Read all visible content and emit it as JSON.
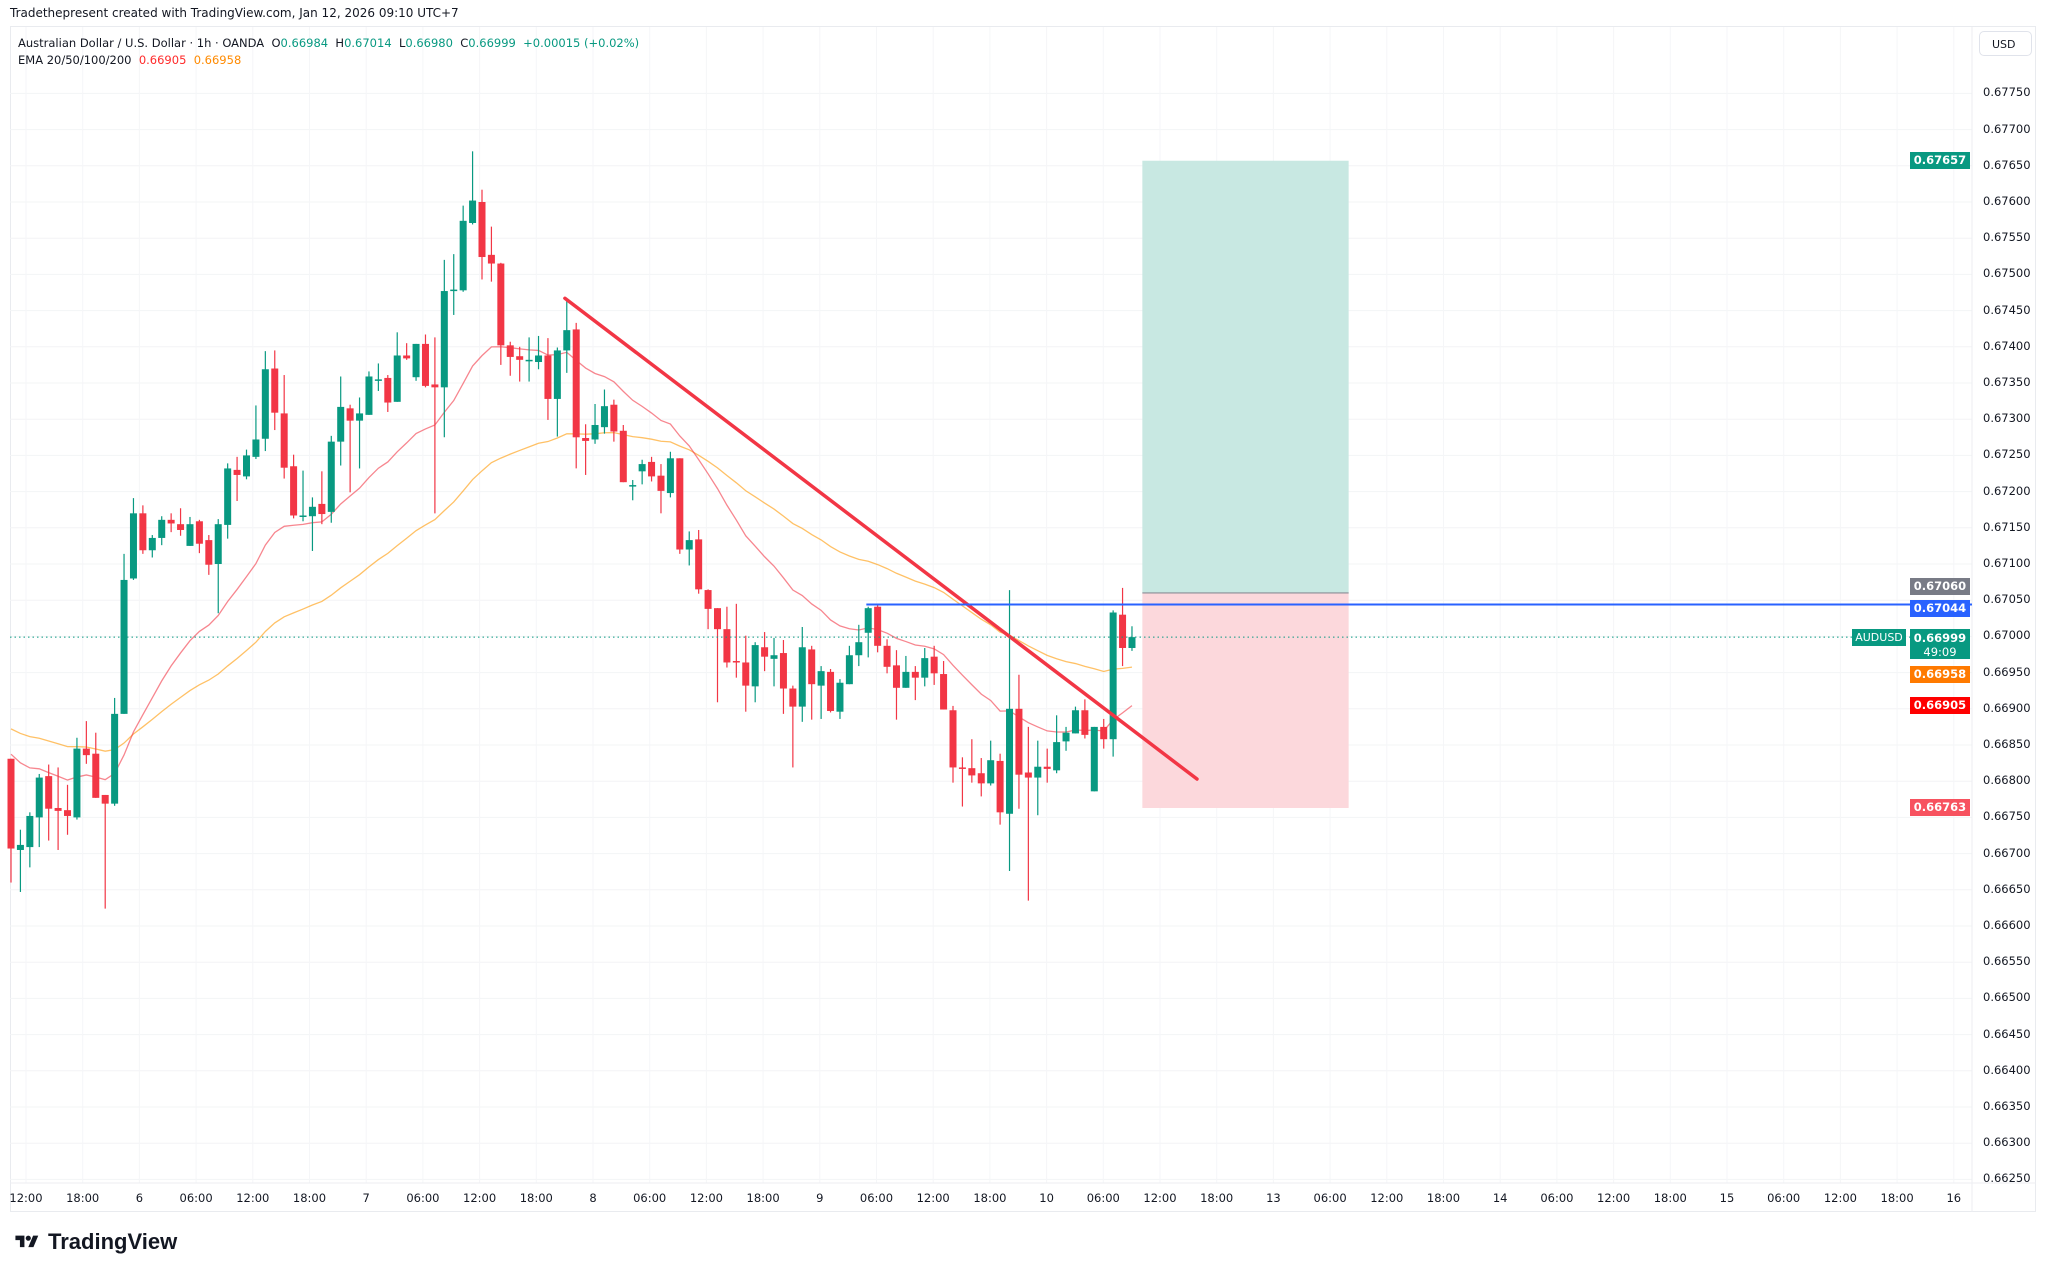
{
  "header": {
    "credit": "Tradethepresent created with TradingView.com, Jan 12, 2026 09:10 UTC+7"
  },
  "legend": {
    "symbol": "Australian Dollar / U.S. Dollar · 1h · OANDA",
    "o_label": "O",
    "o": "0.66984",
    "h_label": "H",
    "h": "0.67014",
    "l_label": "L",
    "l": "0.66980",
    "c_label": "C",
    "c": "0.66999",
    "change": "+0.00015 (+0.02%)",
    "ema_label": "EMA 20/50/100/200",
    "ema20": "0.66905",
    "ema50": "0.66958"
  },
  "currency_button": "USD",
  "badges": {
    "target": "0.67657",
    "entry": "0.67060",
    "level": "0.67044",
    "symbol": "AUDUSD",
    "price": "0.66999",
    "countdown": "49:09",
    "ema50": "0.66958",
    "ema20": "0.66905",
    "stop": "0.66763"
  },
  "logo": "TradingView",
  "colors": {
    "up": "#089981",
    "down": "#f23645",
    "ema20": "#f23645",
    "ema50": "#ff9800",
    "level": "#2962ff",
    "trend": "#f23645"
  },
  "chart_data": {
    "type": "candlestick",
    "title": "AUDUSD 1h",
    "ylim": [
      0.6625,
      0.6778
    ],
    "y_ticks": [
      "0.67750",
      "0.67700",
      "0.67650",
      "0.67600",
      "0.67550",
      "0.67500",
      "0.67450",
      "0.67400",
      "0.67350",
      "0.67300",
      "0.67250",
      "0.67200",
      "0.67150",
      "0.67100",
      "0.67050",
      "0.67000",
      "0.66950",
      "0.66900",
      "0.66850",
      "0.66800",
      "0.66750",
      "0.66700",
      "0.66650",
      "0.66600",
      "0.66550",
      "0.66500",
      "0.66450",
      "0.66400",
      "0.66350",
      "0.66300",
      "0.66250"
    ],
    "x_ticks": [
      "12:00",
      "18:00",
      "6",
      "06:00",
      "12:00",
      "18:00",
      "7",
      "06:00",
      "12:00",
      "18:00",
      "8",
      "06:00",
      "12:00",
      "18:00",
      "9",
      "06:00",
      "12:00",
      "18:00",
      "10",
      "06:00",
      "12:00",
      "18:00",
      "13",
      "06:00",
      "12:00",
      "18:00",
      "14",
      "06:00",
      "12:00",
      "18:00",
      "15",
      "06:00",
      "12:00",
      "18:00",
      "16"
    ],
    "ema_seed": {
      "ema20": 0.66851,
      "ema50": 0.66879
    },
    "ohlc": [
      [
        0.66831,
        0.66831,
        0.6666,
        0.66707
      ],
      [
        0.66705,
        0.66733,
        0.66647,
        0.66712
      ],
      [
        0.66709,
        0.66757,
        0.66681,
        0.66752
      ],
      [
        0.6675,
        0.6681,
        0.66709,
        0.66805
      ],
      [
        0.66807,
        0.66823,
        0.66718,
        0.66762
      ],
      [
        0.66763,
        0.66819,
        0.66705,
        0.66759
      ],
      [
        0.6676,
        0.66795,
        0.66726,
        0.66752
      ],
      [
        0.6675,
        0.6686,
        0.66747,
        0.66845
      ],
      [
        0.66845,
        0.66883,
        0.66824,
        0.66836
      ],
      [
        0.66838,
        0.66867,
        0.66777,
        0.66777
      ],
      [
        0.66781,
        0.66781,
        0.66624,
        0.66769
      ],
      [
        0.66769,
        0.66915,
        0.66766,
        0.66893
      ],
      [
        0.66893,
        0.67114,
        0.66893,
        0.67078
      ],
      [
        0.6708,
        0.67191,
        0.67078,
        0.6717
      ],
      [
        0.6717,
        0.67181,
        0.67114,
        0.67119
      ],
      [
        0.67119,
        0.6714,
        0.67109,
        0.67136
      ],
      [
        0.67136,
        0.67166,
        0.67126,
        0.67161
      ],
      [
        0.67161,
        0.6717,
        0.67144,
        0.67156
      ],
      [
        0.67155,
        0.67177,
        0.67139,
        0.67147
      ],
      [
        0.67125,
        0.67165,
        0.67125,
        0.67155
      ],
      [
        0.67159,
        0.67161,
        0.67115,
        0.67128
      ],
      [
        0.67133,
        0.6714,
        0.67085,
        0.67099
      ],
      [
        0.671,
        0.67162,
        0.67032,
        0.67155
      ],
      [
        0.67154,
        0.67239,
        0.67135,
        0.67232
      ],
      [
        0.6723,
        0.67248,
        0.67187,
        0.67223
      ],
      [
        0.67221,
        0.67258,
        0.67217,
        0.6725
      ],
      [
        0.67248,
        0.67319,
        0.67245,
        0.67272
      ],
      [
        0.67273,
        0.67394,
        0.67256,
        0.67369
      ],
      [
        0.6737,
        0.67395,
        0.67285,
        0.67309
      ],
      [
        0.67308,
        0.67361,
        0.67218,
        0.67233
      ],
      [
        0.67235,
        0.67251,
        0.67163,
        0.67167
      ],
      [
        0.67166,
        0.67229,
        0.67159,
        0.67167
      ],
      [
        0.67166,
        0.67192,
        0.67118,
        0.67179
      ],
      [
        0.67183,
        0.67228,
        0.67155,
        0.67169
      ],
      [
        0.67172,
        0.67277,
        0.67157,
        0.67269
      ],
      [
        0.67269,
        0.67359,
        0.67236,
        0.67317
      ],
      [
        0.67315,
        0.6732,
        0.67199,
        0.67298
      ],
      [
        0.67298,
        0.6733,
        0.67232,
        0.67308
      ],
      [
        0.67306,
        0.67366,
        0.67306,
        0.67359
      ],
      [
        0.67353,
        0.67377,
        0.67339,
        0.67355
      ],
      [
        0.67357,
        0.67361,
        0.6731,
        0.67323
      ],
      [
        0.67324,
        0.6742,
        0.67324,
        0.67388
      ],
      [
        0.67388,
        0.67405,
        0.67382,
        0.67384
      ],
      [
        0.67358,
        0.67404,
        0.67353,
        0.67404
      ],
      [
        0.67404,
        0.67417,
        0.67344,
        0.67346
      ],
      [
        0.67348,
        0.67413,
        0.6717,
        0.67344
      ],
      [
        0.67344,
        0.6752,
        0.67275,
        0.67477
      ],
      [
        0.67477,
        0.67528,
        0.67444,
        0.67479
      ],
      [
        0.67478,
        0.67595,
        0.67476,
        0.67574
      ],
      [
        0.67571,
        0.6767,
        0.67569,
        0.67602
      ],
      [
        0.676,
        0.67617,
        0.67493,
        0.67524
      ],
      [
        0.67527,
        0.67566,
        0.6749,
        0.67515
      ],
      [
        0.67515,
        0.67516,
        0.67375,
        0.67402
      ],
      [
        0.67402,
        0.67407,
        0.6736,
        0.67386
      ],
      [
        0.67387,
        0.674,
        0.67352,
        0.67382
      ],
      [
        0.67381,
        0.67413,
        0.67352,
        0.67382
      ],
      [
        0.67379,
        0.67415,
        0.67369,
        0.67388
      ],
      [
        0.67388,
        0.67412,
        0.67299,
        0.67328
      ],
      [
        0.67328,
        0.67399,
        0.67276,
        0.67395
      ],
      [
        0.67395,
        0.67467,
        0.67364,
        0.67423
      ],
      [
        0.67424,
        0.67433,
        0.67232,
        0.67275
      ],
      [
        0.67274,
        0.67293,
        0.67223,
        0.6727
      ],
      [
        0.67272,
        0.67321,
        0.67266,
        0.67292
      ],
      [
        0.67289,
        0.67341,
        0.6728,
        0.67318
      ],
      [
        0.6732,
        0.67327,
        0.67269,
        0.67283
      ],
      [
        0.67284,
        0.67292,
        0.67213,
        0.67213
      ],
      [
        0.67208,
        0.67216,
        0.67188,
        0.67209
      ],
      [
        0.67228,
        0.67244,
        0.6721,
        0.67238
      ],
      [
        0.67241,
        0.67248,
        0.67214,
        0.67221
      ],
      [
        0.67222,
        0.67238,
        0.6717,
        0.67201
      ],
      [
        0.67198,
        0.67255,
        0.67192,
        0.67246
      ],
      [
        0.67246,
        0.67246,
        0.67114,
        0.6712
      ],
      [
        0.6712,
        0.67145,
        0.67098,
        0.67133
      ],
      [
        0.67134,
        0.67147,
        0.67059,
        0.67065
      ],
      [
        0.67064,
        0.67065,
        0.6701,
        0.67038
      ],
      [
        0.67039,
        0.67039,
        0.66909,
        0.6701
      ],
      [
        0.6701,
        0.67041,
        0.66957,
        0.66964
      ],
      [
        0.66966,
        0.67045,
        0.66943,
        0.66965
      ],
      [
        0.66964,
        0.67001,
        0.66896,
        0.66932
      ],
      [
        0.66931,
        0.66992,
        0.66909,
        0.66988
      ],
      [
        0.66985,
        0.67006,
        0.66952,
        0.66972
      ],
      [
        0.66969,
        0.66998,
        0.66931,
        0.66974
      ],
      [
        0.66977,
        0.66995,
        0.66893,
        0.66928
      ],
      [
        0.66928,
        0.66932,
        0.66819,
        0.66903
      ],
      [
        0.66903,
        0.67013,
        0.66882,
        0.66985
      ],
      [
        0.66982,
        0.66987,
        0.66885,
        0.66934
      ],
      [
        0.66932,
        0.66959,
        0.66886,
        0.66952
      ],
      [
        0.66951,
        0.66955,
        0.66895,
        0.66897
      ],
      [
        0.66896,
        0.66941,
        0.66886,
        0.66936
      ],
      [
        0.66934,
        0.66987,
        0.66934,
        0.66974
      ],
      [
        0.66974,
        0.67016,
        0.66959,
        0.66992
      ],
      [
        0.67005,
        0.67041,
        0.66971,
        0.67039
      ],
      [
        0.67041,
        0.67045,
        0.66978,
        0.66987
      ],
      [
        0.66987,
        0.66996,
        0.66949,
        0.66958
      ],
      [
        0.6696,
        0.66981,
        0.66885,
        0.66929
      ],
      [
        0.66929,
        0.66973,
        0.66929,
        0.66951
      ],
      [
        0.66951,
        0.66959,
        0.66912,
        0.66943
      ],
      [
        0.66943,
        0.66984,
        0.66931,
        0.6697
      ],
      [
        0.66972,
        0.66987,
        0.66933,
        0.66949
      ],
      [
        0.66948,
        0.66966,
        0.66899,
        0.66899
      ],
      [
        0.66898,
        0.66904,
        0.66798,
        0.66819
      ],
      [
        0.66819,
        0.66833,
        0.66765,
        0.66817
      ],
      [
        0.66818,
        0.66858,
        0.66798,
        0.66808
      ],
      [
        0.66811,
        0.66832,
        0.66779,
        0.66797
      ],
      [
        0.66797,
        0.66856,
        0.66794,
        0.66829
      ],
      [
        0.66828,
        0.66838,
        0.6674,
        0.66757
      ],
      [
        0.66755,
        0.67064,
        0.66676,
        0.669
      ],
      [
        0.669,
        0.66947,
        0.66762,
        0.66809
      ],
      [
        0.66812,
        0.66875,
        0.66635,
        0.66805
      ],
      [
        0.66805,
        0.66856,
        0.66753,
        0.6682
      ],
      [
        0.6682,
        0.66845,
        0.66798,
        0.66817
      ],
      [
        0.66815,
        0.66891,
        0.66811,
        0.66854
      ],
      [
        0.66855,
        0.66875,
        0.66842,
        0.66867
      ],
      [
        0.66866,
        0.66903,
        0.66866,
        0.66898
      ],
      [
        0.66898,
        0.66913,
        0.66859,
        0.66864
      ],
      [
        0.66786,
        0.66875,
        0.66786,
        0.66875
      ],
      [
        0.66875,
        0.66886,
        0.66845,
        0.66858
      ],
      [
        0.66858,
        0.67036,
        0.66834,
        0.67033
      ],
      [
        0.6703,
        0.67067,
        0.66959,
        0.66984
      ],
      [
        0.66984,
        0.67014,
        0.6698,
        0.66999
      ]
    ],
    "current_price": 0.66999,
    "drawings": {
      "trendline": {
        "from_bar": 58.8,
        "from_price": 0.67467,
        "to_bar": 125.9,
        "to_price": 0.66803
      },
      "horizontal_level": {
        "from_bar": 90.8,
        "price": 0.67044
      },
      "long_position": {
        "from_bar": 120.1,
        "to_bar": 142.0,
        "entry": 0.6706,
        "target": 0.67657,
        "stop": 0.66763
      }
    }
  }
}
